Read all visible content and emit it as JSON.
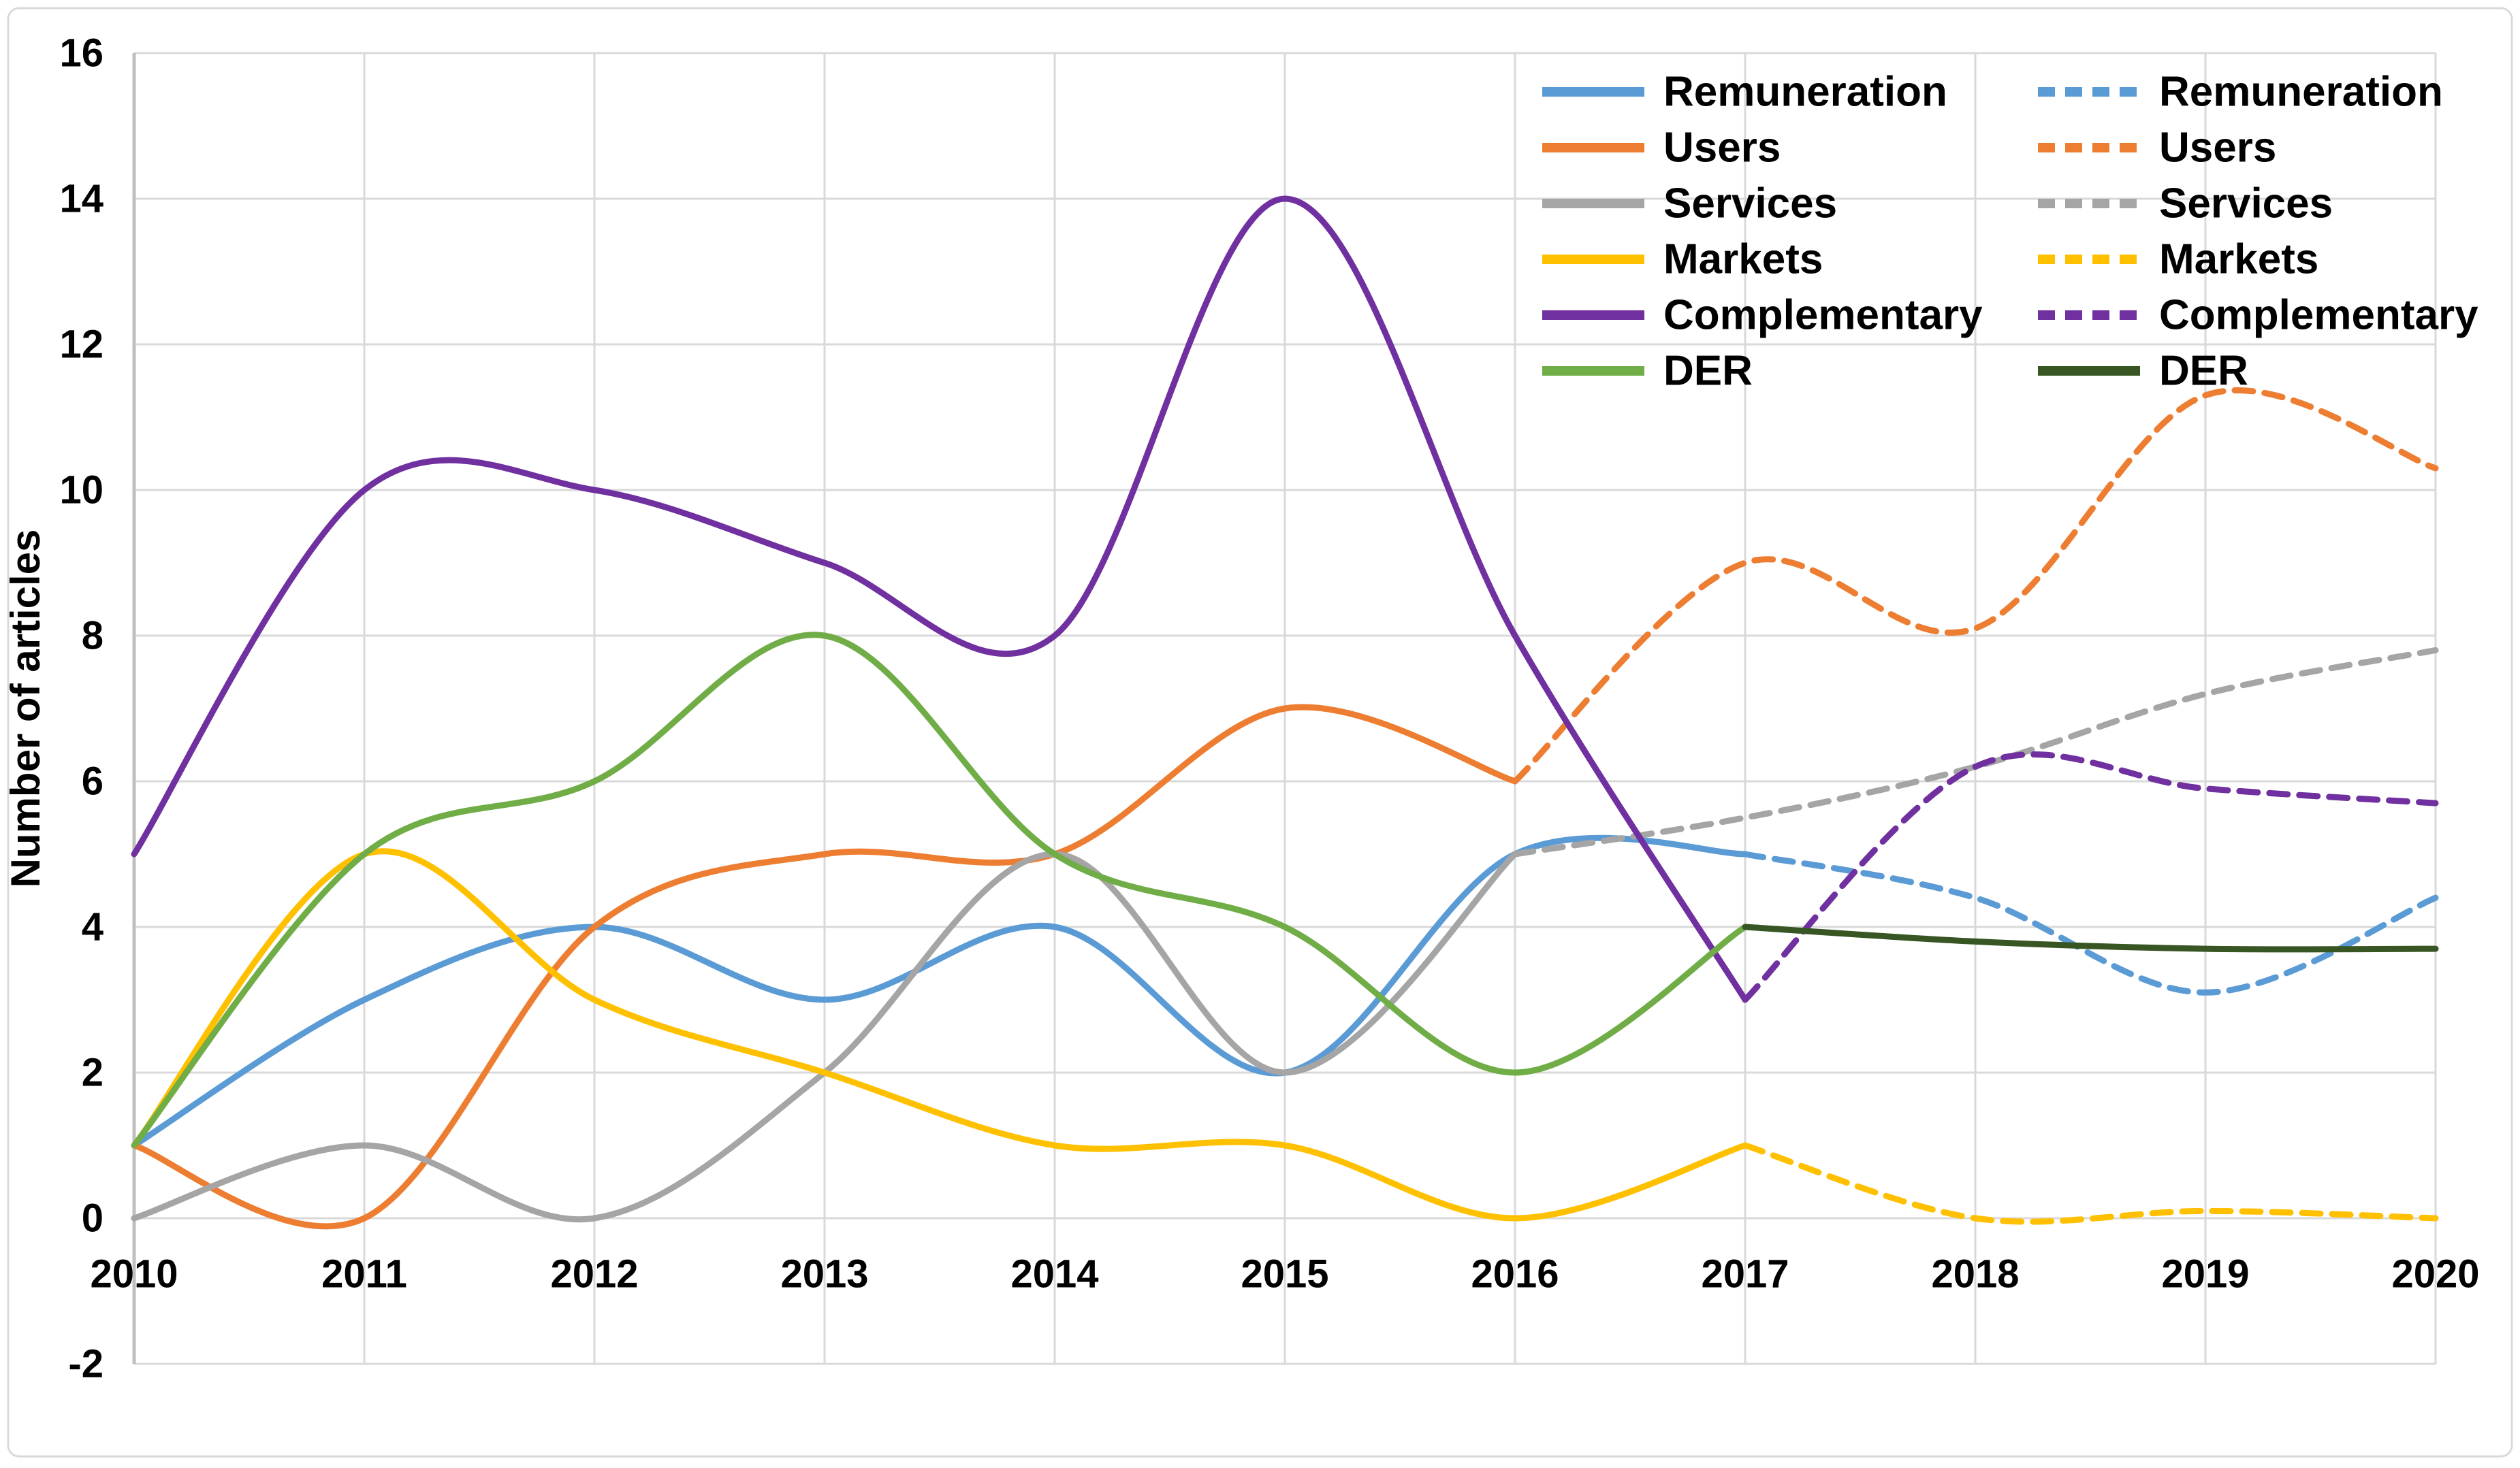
{
  "chart_data": {
    "type": "line",
    "title": "",
    "xlabel": "",
    "ylabel": "Number of articles",
    "xlim": [
      2010,
      2020
    ],
    "ylim": [
      -2,
      16
    ],
    "x_ticks": [
      2010,
      2011,
      2012,
      2013,
      2014,
      2015,
      2016,
      2017,
      2018,
      2019,
      2020
    ],
    "y_ticks": [
      -2,
      0,
      2,
      4,
      6,
      8,
      10,
      12,
      14,
      16
    ],
    "grid": true,
    "legend_position": "top-right",
    "series": [
      {
        "name": "Remuneration",
        "style": "solid",
        "color": "#5B9BD5",
        "x": [
          2010,
          2011,
          2012,
          2013,
          2014,
          2015,
          2016,
          2017
        ],
        "values": [
          1,
          3,
          4,
          3,
          4,
          2,
          5,
          5
        ]
      },
      {
        "name": "Remuneration",
        "style": "dashed",
        "color": "#5B9BD5",
        "x": [
          2017,
          2018,
          2019,
          2020
        ],
        "values": [
          5,
          4.4,
          3.1,
          4.4
        ]
      },
      {
        "name": "Users",
        "style": "solid",
        "color": "#ED7D31",
        "x": [
          2010,
          2011,
          2012,
          2013,
          2014,
          2015,
          2016
        ],
        "values": [
          1,
          0,
          4,
          5,
          5,
          7,
          6
        ]
      },
      {
        "name": "Users",
        "style": "dashed",
        "color": "#ED7D31",
        "x": [
          2016,
          2017,
          2018,
          2019,
          2020
        ],
        "values": [
          6,
          9,
          8.1,
          11.3,
          10.3
        ]
      },
      {
        "name": "Services",
        "style": "solid",
        "color": "#A5A5A5",
        "x": [
          2010,
          2011,
          2012,
          2013,
          2014,
          2015,
          2016
        ],
        "values": [
          0,
          1,
          0,
          2,
          5,
          2,
          5
        ]
      },
      {
        "name": "Services",
        "style": "dashed",
        "color": "#A5A5A5",
        "x": [
          2016,
          2017,
          2018,
          2019,
          2020
        ],
        "values": [
          5,
          5.5,
          6.2,
          7.2,
          7.8
        ]
      },
      {
        "name": "Markets",
        "style": "solid",
        "color": "#FFC000",
        "x": [
          2010,
          2011,
          2012,
          2013,
          2014,
          2015,
          2016,
          2017
        ],
        "values": [
          1,
          5,
          3,
          2,
          1,
          1,
          0,
          1
        ]
      },
      {
        "name": "Markets",
        "style": "dashed",
        "color": "#FFC000",
        "x": [
          2017,
          2018,
          2019,
          2020
        ],
        "values": [
          1,
          0,
          0.1,
          0
        ]
      },
      {
        "name": "Complementary",
        "style": "solid",
        "color": "#7030A0",
        "x": [
          2010,
          2011,
          2012,
          2013,
          2014,
          2015,
          2016,
          2017
        ],
        "values": [
          5,
          10,
          10,
          9,
          8,
          14,
          8,
          3
        ]
      },
      {
        "name": "Complementary",
        "style": "dashed",
        "color": "#7030A0",
        "x": [
          2017,
          2018,
          2019,
          2020
        ],
        "values": [
          3,
          6.2,
          5.9,
          5.7
        ]
      },
      {
        "name": "DER",
        "style": "solid",
        "color": "#70AD47",
        "x": [
          2010,
          2011,
          2012,
          2013,
          2014,
          2015,
          2016,
          2017
        ],
        "values": [
          1,
          5,
          6,
          8,
          5,
          4,
          2,
          4
        ]
      },
      {
        "name": "DER",
        "style": "solid",
        "color": "#375623",
        "x": [
          2017,
          2018,
          2019,
          2020
        ],
        "values": [
          4,
          3.8,
          3.7,
          3.7
        ]
      }
    ],
    "legend": {
      "columns": [
        [
          {
            "label": "Remuneration",
            "color": "#5B9BD5",
            "dash": false
          },
          {
            "label": "Users",
            "color": "#ED7D31",
            "dash": false
          },
          {
            "label": "Services",
            "color": "#A5A5A5",
            "dash": false
          },
          {
            "label": "Markets",
            "color": "#FFC000",
            "dash": false
          },
          {
            "label": "Complementary",
            "color": "#7030A0",
            "dash": false
          },
          {
            "label": "DER",
            "color": "#70AD47",
            "dash": false
          }
        ],
        [
          {
            "label": "Remuneration",
            "color": "#5B9BD5",
            "dash": true
          },
          {
            "label": "Users",
            "color": "#ED7D31",
            "dash": true
          },
          {
            "label": "Services",
            "color": "#A5A5A5",
            "dash": true
          },
          {
            "label": "Markets",
            "color": "#FFC000",
            "dash": true
          },
          {
            "label": "Complementary",
            "color": "#7030A0",
            "dash": true
          },
          {
            "label": "DER",
            "color": "#375623",
            "dash": false
          }
        ]
      ]
    }
  },
  "colors": {
    "background": "#FFFFFF",
    "chart_border": "#D9D9D9",
    "gridline": "#D9D9D9",
    "axis_line": "#BFBFBF",
    "text": "#000000"
  }
}
